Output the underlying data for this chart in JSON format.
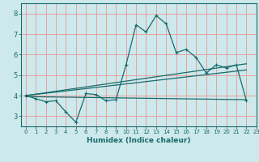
{
  "xlabel": "Humidex (Indice chaleur)",
  "xlim": [
    -0.5,
    23
  ],
  "ylim": [
    2.5,
    8.5
  ],
  "yticks": [
    3,
    4,
    5,
    6,
    7,
    8
  ],
  "xticks": [
    0,
    1,
    2,
    3,
    4,
    5,
    6,
    7,
    8,
    9,
    10,
    11,
    12,
    13,
    14,
    15,
    16,
    17,
    18,
    19,
    20,
    21,
    22,
    23
  ],
  "bg_color": "#cde9ec",
  "grid_color": "#e8a0a0",
  "line_color": "#1a6b6b",
  "line1_x": [
    0,
    1,
    2,
    3,
    4,
    5,
    6,
    7,
    8,
    9,
    10,
    11,
    12,
    13,
    14,
    15,
    16,
    17,
    18,
    19,
    20,
    21,
    22
  ],
  "line1_y": [
    4.0,
    3.85,
    3.7,
    3.75,
    3.2,
    2.7,
    4.1,
    4.05,
    3.75,
    3.8,
    5.5,
    7.45,
    7.1,
    7.9,
    7.5,
    6.1,
    6.25,
    5.85,
    5.1,
    5.5,
    5.35,
    5.5,
    3.75
  ],
  "line2_x": [
    0,
    22
  ],
  "line2_y": [
    3.95,
    3.8
  ],
  "line3_x": [
    0,
    22
  ],
  "line3_y": [
    4.0,
    5.55
  ],
  "line4_x": [
    0,
    22
  ],
  "line4_y": [
    4.0,
    5.25
  ]
}
